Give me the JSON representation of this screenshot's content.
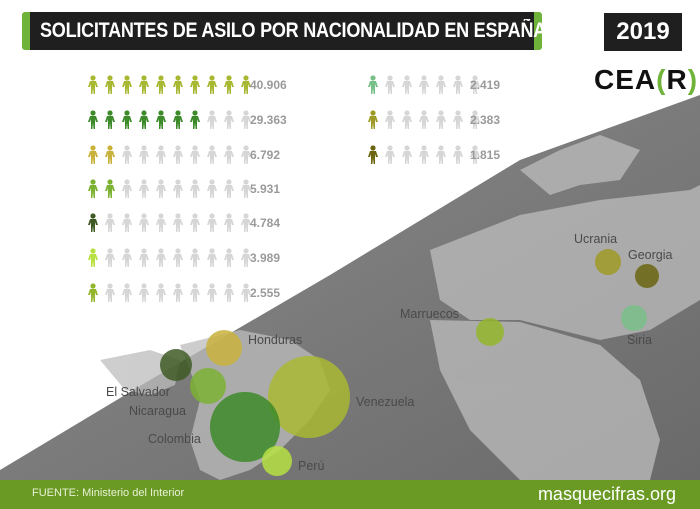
{
  "title": "SOLICITANTES DE ASILO POR NACIONALIDAD EN ESPAÑA",
  "year": "2019",
  "logo": {
    "text_main": "CEA",
    "bracket_open": "(",
    "letter": "R",
    "bracket_close": ")"
  },
  "footer": {
    "source": "FUENTE: Ministerio del Interior",
    "site": "masquecifras.org"
  },
  "colors": {
    "accent": "#6fb33a",
    "inactive_person": "#d6d6d6",
    "footer": "#6a9a24"
  },
  "chart_data": {
    "type": "bar",
    "title": "SOLICITANTES DE ASILO POR NACIONALIDAD EN ESPAÑA",
    "icon_scale_max": 10,
    "categories": [
      "VENEZUELA",
      "COLOMBIA",
      "HONDURAS",
      "NICARAGUA",
      "EL SALVADOR",
      "PERÚ",
      "MARRUECOS",
      "SIRIA",
      "UCRANIA",
      "GEORGIA"
    ],
    "values": [
      40906,
      29363,
      6792,
      5931,
      4784,
      3989,
      2555,
      2419,
      2383,
      1815
    ],
    "labels": [
      "40.906",
      "29.363",
      "6.792",
      "5.931",
      "4.784",
      "3.989",
      "2.555",
      "2.419",
      "2.383",
      "1.815"
    ],
    "icons_filled": [
      10,
      7,
      2,
      2,
      1,
      1,
      1,
      1,
      1,
      1
    ],
    "colors": [
      "#a9b832",
      "#3d8a2a",
      "#c9b23c",
      "#7cb232",
      "#3f5a25",
      "#b7e043",
      "#93b52c",
      "#79bf88",
      "#9e9a26",
      "#6b6511"
    ],
    "map_labels": [
      "Honduras",
      "El Salvador",
      "Nicaragua",
      "Colombia",
      "Venezuela",
      "Perú",
      "Marruecos",
      "Ucrania",
      "Georgia",
      "Siria"
    ]
  }
}
